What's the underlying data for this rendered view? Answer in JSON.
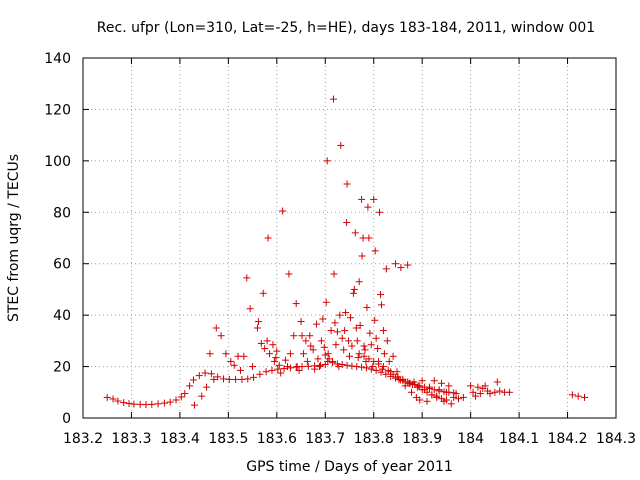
{
  "chart_data": {
    "type": "scatter",
    "title": "Rec. ufpr (Lon=310, Lat=-25, h=HE), days 183-184, 2011, window 001",
    "xlabel": "GPS time / Days of year 2011",
    "ylabel": "STEC from uqrg / TECUs",
    "xlim": [
      183.2,
      184.3
    ],
    "ylim": [
      0,
      140
    ],
    "xticks": [
      183.2,
      183.3,
      183.4,
      183.5,
      183.6,
      183.7,
      183.8,
      183.9,
      184.0,
      184.1,
      184.2,
      184.3
    ],
    "xtick_labels": [
      "183.2",
      "183.3",
      "183.4",
      "183.5",
      "183.6",
      "183.7",
      "183.8",
      "183.9",
      "184",
      "184.1",
      "184.2",
      "184.3"
    ],
    "yticks": [
      0,
      20,
      40,
      60,
      80,
      100,
      120,
      140
    ],
    "ytick_labels": [
      "0",
      "20",
      "40",
      "60",
      "80",
      "100",
      "120",
      "140"
    ],
    "grid": true,
    "marker": "+",
    "color": "#d40000",
    "series": [
      {
        "name": "STEC",
        "points": [
          [
            183.25,
            8
          ],
          [
            183.262,
            7.4
          ],
          [
            183.272,
            6.6
          ],
          [
            183.284,
            6.0
          ],
          [
            183.295,
            5.6
          ],
          [
            183.305,
            5.4
          ],
          [
            183.318,
            5.3
          ],
          [
            183.33,
            5.2
          ],
          [
            183.342,
            5.3
          ],
          [
            183.355,
            5.5
          ],
          [
            183.368,
            5.8
          ],
          [
            183.38,
            6.2
          ],
          [
            183.392,
            7.0
          ],
          [
            183.403,
            8.2
          ],
          [
            183.41,
            9.5
          ],
          [
            183.42,
            12.5
          ],
          [
            183.428,
            14.8
          ],
          [
            183.44,
            16.5
          ],
          [
            183.452,
            17.5
          ],
          [
            183.465,
            17.2
          ],
          [
            183.478,
            16.0
          ],
          [
            183.49,
            15.2
          ],
          [
            183.502,
            15.0
          ],
          [
            183.515,
            15.0
          ],
          [
            183.528,
            15.0
          ],
          [
            183.54,
            15.2
          ],
          [
            183.552,
            15.8
          ],
          [
            183.565,
            17.0
          ],
          [
            183.578,
            18.0
          ],
          [
            183.59,
            18.5
          ],
          [
            183.602,
            19.0
          ],
          [
            183.615,
            19.2
          ],
          [
            183.628,
            19.5
          ],
          [
            183.64,
            19.8
          ],
          [
            183.652,
            20.0
          ],
          [
            183.665,
            20.1
          ],
          [
            183.678,
            20.3
          ],
          [
            183.69,
            20.5
          ],
          [
            183.7,
            20.8
          ],
          [
            183.43,
            5.0
          ],
          [
            183.445,
            8.5
          ],
          [
            183.455,
            12.0
          ],
          [
            183.462,
            25.0
          ],
          [
            183.47,
            15.0
          ],
          [
            183.475,
            35.0
          ],
          [
            183.485,
            32.0
          ],
          [
            183.495,
            25.0
          ],
          [
            183.505,
            22.0
          ],
          [
            183.512,
            20.5
          ],
          [
            183.52,
            24.0
          ],
          [
            183.525,
            18.5
          ],
          [
            183.532,
            24.0
          ],
          [
            183.538,
            54.5
          ],
          [
            183.545,
            42.5
          ],
          [
            183.55,
            20.0
          ],
          [
            183.56,
            35.0
          ],
          [
            183.562,
            37.5
          ],
          [
            183.568,
            29.0
          ],
          [
            183.572,
            48.5
          ],
          [
            183.575,
            27.0
          ],
          [
            183.58,
            30.0
          ],
          [
            183.582,
            70.0
          ],
          [
            183.585,
            25.0
          ],
          [
            183.592,
            28.5
          ],
          [
            183.595,
            22.0
          ],
          [
            183.598,
            23.5
          ],
          [
            183.6,
            26.0
          ],
          [
            183.605,
            20.5
          ],
          [
            183.608,
            17.5
          ],
          [
            183.612,
            80.5
          ],
          [
            183.618,
            22.5
          ],
          [
            183.622,
            20.0
          ],
          [
            183.625,
            56.0
          ],
          [
            183.628,
            25.0
          ],
          [
            183.635,
            32.0
          ],
          [
            183.64,
            44.5
          ],
          [
            183.642,
            20.0
          ],
          [
            183.646,
            18.5
          ],
          [
            183.65,
            37.5
          ],
          [
            183.652,
            32.0
          ],
          [
            183.655,
            25.0
          ],
          [
            183.66,
            30.0
          ],
          [
            183.663,
            22.0
          ],
          [
            183.668,
            32.0
          ],
          [
            183.67,
            28.0
          ],
          [
            183.675,
            26.5
          ],
          [
            183.678,
            19.0
          ],
          [
            183.682,
            36.5
          ],
          [
            183.685,
            23.0
          ],
          [
            183.688,
            20.0
          ],
          [
            183.692,
            30.0
          ],
          [
            183.695,
            38.5
          ],
          [
            183.698,
            27.5
          ],
          [
            183.7,
            24.5
          ],
          [
            183.702,
            45.0
          ],
          [
            183.704,
            100.0
          ],
          [
            183.706,
            25.0
          ],
          [
            183.708,
            23.0
          ],
          [
            183.712,
            34.0
          ],
          [
            183.715,
            22.0
          ],
          [
            183.717,
            124.0
          ],
          [
            183.718,
            56.0
          ],
          [
            183.72,
            37.0
          ],
          [
            183.722,
            28.5
          ],
          [
            183.725,
            33.5
          ],
          [
            183.728,
            20.0
          ],
          [
            183.73,
            40.0
          ],
          [
            183.732,
            106.0
          ],
          [
            183.735,
            31.0
          ],
          [
            183.738,
            26.5
          ],
          [
            183.74,
            34.0
          ],
          [
            183.742,
            41.0
          ],
          [
            183.744,
            76.0
          ],
          [
            183.745,
            91.0
          ],
          [
            183.748,
            30.0
          ],
          [
            183.75,
            24.0
          ],
          [
            183.752,
            39.0
          ],
          [
            183.755,
            28.0
          ],
          [
            183.758,
            48.5
          ],
          [
            183.76,
            50.0
          ],
          [
            183.762,
            72.0
          ],
          [
            183.764,
            35.0
          ],
          [
            183.766,
            30.0
          ],
          [
            183.768,
            23.5
          ],
          [
            183.77,
            53.0
          ],
          [
            183.772,
            36.0
          ],
          [
            183.775,
            85.0
          ],
          [
            183.776,
            63.0
          ],
          [
            183.778,
            70.0
          ],
          [
            183.78,
            28.0
          ],
          [
            183.782,
            26.5
          ],
          [
            183.784,
            22.0
          ],
          [
            183.786,
            43.0
          ],
          [
            183.788,
            82.0
          ],
          [
            183.79,
            70.0
          ],
          [
            183.792,
            33.0
          ],
          [
            183.795,
            28.5
          ],
          [
            183.798,
            20.0
          ],
          [
            183.8,
            85.0
          ],
          [
            183.802,
            38.0
          ],
          [
            183.803,
            65.0
          ],
          [
            183.805,
            31.0
          ],
          [
            183.808,
            27.0
          ],
          [
            183.81,
            22.0
          ],
          [
            183.812,
            80.0
          ],
          [
            183.814,
            48.0
          ],
          [
            183.816,
            44.0
          ],
          [
            183.818,
            19.0
          ],
          [
            183.82,
            34.0
          ],
          [
            183.822,
            25.0
          ],
          [
            183.826,
            58.0
          ],
          [
            183.828,
            30.0
          ],
          [
            183.832,
            22.0
          ],
          [
            183.835,
            18.0
          ],
          [
            183.84,
            24.0
          ],
          [
            183.845,
            60.0
          ],
          [
            183.848,
            18.0
          ],
          [
            183.852,
            15.0
          ],
          [
            183.856,
            58.5
          ],
          [
            183.86,
            14.5
          ],
          [
            183.865,
            12.5
          ],
          [
            183.87,
            59.5
          ],
          [
            183.873,
            13.5
          ],
          [
            183.878,
            10.0
          ],
          [
            183.883,
            14.0
          ],
          [
            183.888,
            8.0
          ],
          [
            183.892,
            12.5
          ],
          [
            183.895,
            7.0
          ],
          [
            183.9,
            14.5
          ],
          [
            183.905,
            11.0
          ],
          [
            183.91,
            6.5
          ],
          [
            183.915,
            12.0
          ],
          [
            183.92,
            9.0
          ],
          [
            183.925,
            14.5
          ],
          [
            183.93,
            8.5
          ],
          [
            183.935,
            11.0
          ],
          [
            183.94,
            13.5
          ],
          [
            183.945,
            6.5
          ],
          [
            183.95,
            10.0
          ],
          [
            183.955,
            12.5
          ],
          [
            183.96,
            5.5
          ],
          [
            183.965,
            8.0
          ],
          [
            183.97,
            9.5
          ],
          [
            183.975,
            7.5
          ],
          [
            183.985,
            8.0
          ],
          [
            183.705,
            22.0
          ],
          [
            183.715,
            21.5
          ],
          [
            183.725,
            21.0
          ],
          [
            183.735,
            20.8
          ],
          [
            183.745,
            20.5
          ],
          [
            183.755,
            20.2
          ],
          [
            183.765,
            20.0
          ],
          [
            183.775,
            19.8
          ],
          [
            183.785,
            19.5
          ],
          [
            183.795,
            19.0
          ],
          [
            183.805,
            18.5
          ],
          [
            183.815,
            17.8
          ],
          [
            183.825,
            17.0
          ],
          [
            183.835,
            16.2
          ],
          [
            183.845,
            15.5
          ],
          [
            183.855,
            14.8
          ],
          [
            183.865,
            14.0
          ],
          [
            183.875,
            13.5
          ],
          [
            183.885,
            13.0
          ],
          [
            183.895,
            12.5
          ],
          [
            183.905,
            12.0
          ],
          [
            183.915,
            11.5
          ],
          [
            183.925,
            11.0
          ],
          [
            183.935,
            10.5
          ],
          [
            183.945,
            10.2
          ],
          [
            183.955,
            10.0
          ],
          [
            183.965,
            9.8
          ],
          [
            183.77,
            25.0
          ],
          [
            183.78,
            24.0
          ],
          [
            183.79,
            23.0
          ],
          [
            183.8,
            22.0
          ],
          [
            183.81,
            21.0
          ],
          [
            183.82,
            20.0
          ],
          [
            183.83,
            18.5
          ],
          [
            183.84,
            17.0
          ],
          [
            183.85,
            16.0
          ],
          [
            183.86,
            15.0
          ],
          [
            183.87,
            14.0
          ],
          [
            183.88,
            13.0
          ],
          [
            183.89,
            12.0
          ],
          [
            183.9,
            11.0
          ],
          [
            183.91,
            10.0
          ],
          [
            183.92,
            9.0
          ],
          [
            183.93,
            8.0
          ],
          [
            183.94,
            7.5
          ],
          [
            183.95,
            7.0
          ],
          [
            184.0,
            12.5
          ],
          [
            184.005,
            10.0
          ],
          [
            184.01,
            8.5
          ],
          [
            184.015,
            12.0
          ],
          [
            184.02,
            9.5
          ],
          [
            184.025,
            11.5
          ],
          [
            184.03,
            12.5
          ],
          [
            184.035,
            10.5
          ],
          [
            184.04,
            9.5
          ],
          [
            184.05,
            10.0
          ],
          [
            184.055,
            14.0
          ],
          [
            184.06,
            10.5
          ],
          [
            184.07,
            10.0
          ],
          [
            184.08,
            10.0
          ],
          [
            184.21,
            9.0
          ],
          [
            184.222,
            8.5
          ],
          [
            184.235,
            8.0
          ]
        ]
      }
    ]
  }
}
